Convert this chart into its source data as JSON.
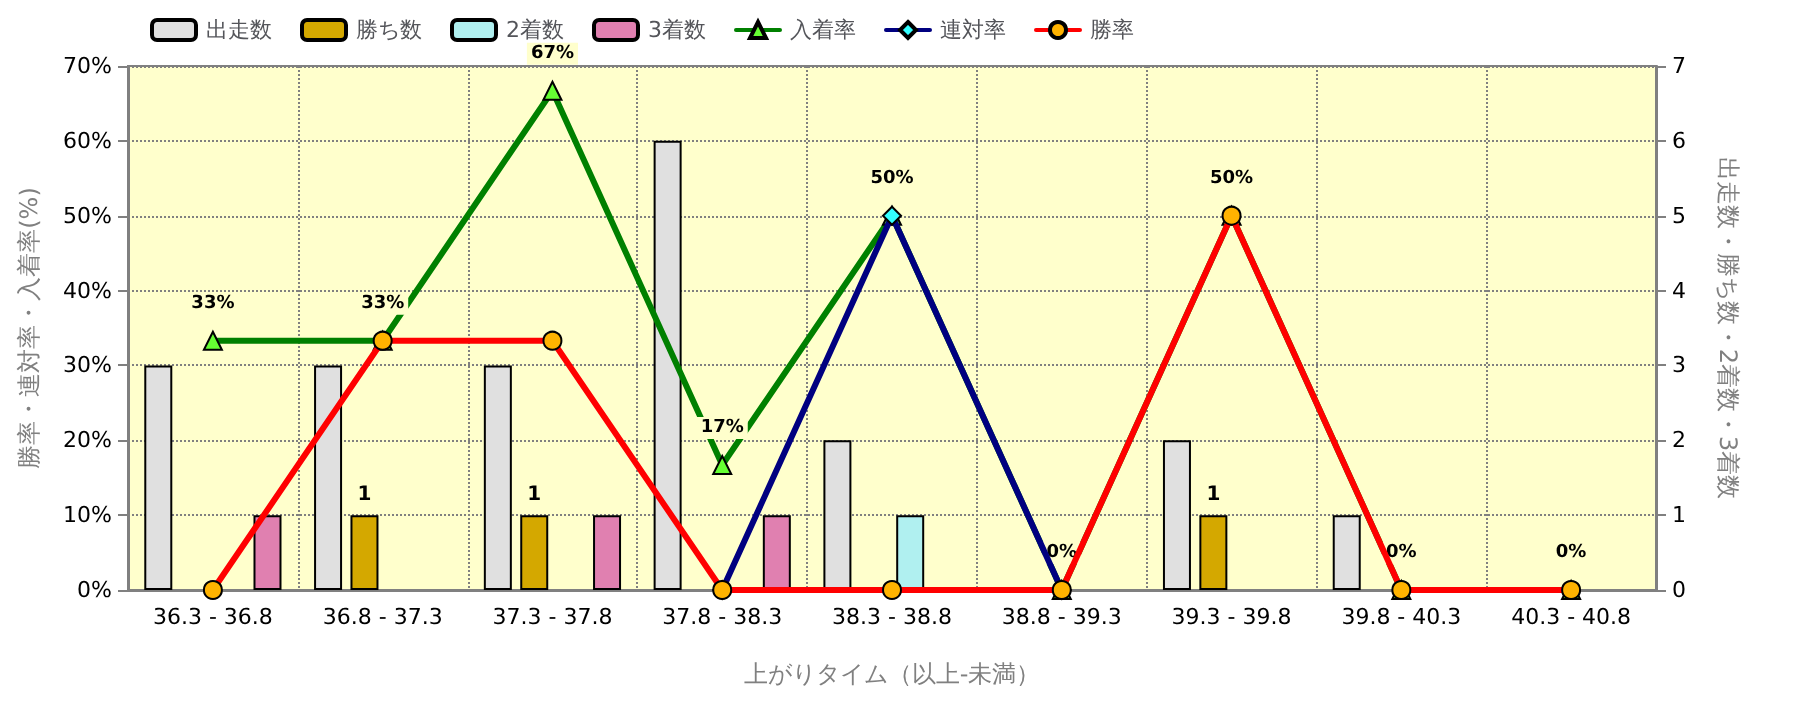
{
  "chart_data": {
    "type": "bar",
    "xlabel": "上がりタイム（以上-未満）",
    "ylabel": "勝率・連対率・入着率(%)",
    "y2label": "出走数・勝ち数・2着数・3着数",
    "categories": [
      "36.3 - 36.8",
      "36.8 - 37.3",
      "37.3 - 37.8",
      "37.8 - 38.3",
      "38.3 - 38.8",
      "38.8 - 39.3",
      "39.3 - 39.8",
      "39.8 - 40.3",
      "40.3 - 40.8"
    ],
    "series": [
      {
        "name": "出走数",
        "axis": "y2",
        "color": "#e0e0e0",
        "values": [
          3,
          3,
          3,
          6,
          2,
          0,
          2,
          1,
          0
        ]
      },
      {
        "name": "勝ち数",
        "axis": "y2",
        "color": "#d4a800",
        "values": [
          0,
          1,
          1,
          0,
          0,
          0,
          1,
          0,
          0
        ],
        "value_labels": [
          null,
          "1",
          "1",
          null,
          null,
          null,
          "1",
          null,
          null
        ]
      },
      {
        "name": "2着数",
        "axis": "y2",
        "color": "#b0f0f0",
        "values": [
          0,
          0,
          0,
          0,
          1,
          0,
          0,
          0,
          0
        ]
      },
      {
        "name": "3着数",
        "axis": "y2",
        "color": "#e080b0",
        "values": [
          1,
          0,
          1,
          1,
          0,
          0,
          0,
          0,
          0
        ]
      },
      {
        "name": "入着率",
        "type": "line",
        "color": "#008000",
        "marker": "triangle",
        "values": [
          33.3,
          33.3,
          66.7,
          16.7,
          50,
          0,
          50,
          0,
          0
        ],
        "value_labels": [
          "33%",
          "33%",
          "67%",
          "17%",
          "50%",
          "0%",
          "50%",
          "0%",
          "0%"
        ]
      },
      {
        "name": "連対率",
        "type": "line",
        "color": "#000080",
        "marker": "diamond",
        "values": [
          null,
          null,
          null,
          0,
          50,
          0,
          null,
          null,
          null
        ]
      },
      {
        "name": "勝率",
        "type": "line",
        "color": "#ff0000",
        "marker": "circle",
        "values": [
          0,
          33.3,
          33.3,
          0,
          0,
          0,
          50,
          0,
          0
        ]
      }
    ],
    "ylim": [
      0,
      70
    ],
    "yticks": [
      {
        "value": 0,
        "label": "0%"
      },
      {
        "value": 10,
        "label": "10%"
      },
      {
        "value": 20,
        "label": "20%"
      },
      {
        "value": 30,
        "label": "30%"
      },
      {
        "value": 40,
        "label": "40%"
      },
      {
        "value": 50,
        "label": "50%"
      },
      {
        "value": 60,
        "label": "60%"
      },
      {
        "value": 70,
        "label": "70%"
      }
    ],
    "y2lim": [
      0,
      7
    ],
    "y2ticks": [
      0,
      1,
      2,
      3,
      4,
      5,
      6,
      7
    ],
    "grid": true,
    "legend": "top left",
    "line_style": "solid"
  }
}
